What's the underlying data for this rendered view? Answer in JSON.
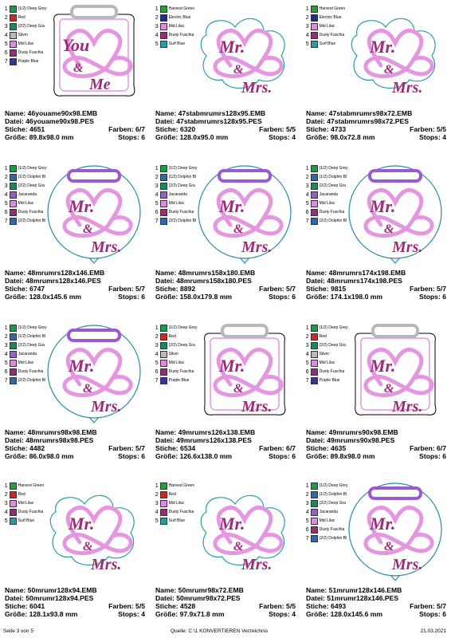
{
  "labels": {
    "name": "Name:",
    "datei": "Datei:",
    "stiche": "Stiche:",
    "groesse": "Größe:",
    "farben": "Farben:",
    "stops": "Stops:"
  },
  "designs": [
    {
      "name": "46youame90x98.EMB",
      "datei": "46youame90x98.PES",
      "stiche": "4651",
      "farben": "6/7",
      "groesse": "89.8x98.0 mm",
      "stops": "6",
      "shape": "you",
      "colors": [
        {
          "n": "1",
          "name": "(1/2) Deep Grey",
          "c": "#1a9c4a"
        },
        {
          "n": "2",
          "name": "Red",
          "c": "#e0201c"
        },
        {
          "n": "3",
          "name": "(2/2) Deep Gra",
          "c": "#1a8a5a"
        },
        {
          "n": "4",
          "name": "Silver",
          "c": "#b8b8b8"
        },
        {
          "n": "5",
          "name": "Mid Lilac",
          "c": "#e08ae0"
        },
        {
          "n": "6",
          "name": "Dusty Fuschia",
          "c": "#a0287c"
        },
        {
          "n": "7",
          "name": "Purple Blue",
          "c": "#3a30a0"
        }
      ]
    },
    {
      "name": "47stabmrumrs128x95.EMB",
      "datei": "47stabmrumrs128x95.PES",
      "stiche": "6320",
      "farben": "5/5",
      "groesse": "128.0x95.0 mm",
      "stops": "4",
      "shape": "mrs",
      "colors": [
        {
          "n": "1",
          "name": "Harvest Green",
          "c": "#2a9c3a"
        },
        {
          "n": "2",
          "name": "Electric Blue",
          "c": "#1a2a9c"
        },
        {
          "n": "3",
          "name": "Mid Lilac",
          "c": "#e08ae0"
        },
        {
          "n": "4",
          "name": "Dusty Fuschia",
          "c": "#a0287c"
        },
        {
          "n": "5",
          "name": "Surf Blue",
          "c": "#2a9ca8"
        }
      ]
    },
    {
      "name": "47stabmrumrs98x72.EMB",
      "datei": "47stabmrumrs98x72.PES",
      "stiche": "4733",
      "farben": "5/5",
      "groesse": "98.0x72.8 mm",
      "stops": "4",
      "shape": "mrs",
      "colors": [
        {
          "n": "1",
          "name": "Harvest Green",
          "c": "#2a9c3a"
        },
        {
          "n": "2",
          "name": "Electric Blue",
          "c": "#1a2a9c"
        },
        {
          "n": "3",
          "name": "Mid Lilac",
          "c": "#e08ae0"
        },
        {
          "n": "4",
          "name": "Dusty Fuschia",
          "c": "#a0287c"
        },
        {
          "n": "5",
          "name": "Surf Blue",
          "c": "#2a9ca8"
        }
      ]
    },
    {
      "name": "48mrumrs128x146.EMB",
      "datei": "48mrumrs128x146.PES",
      "stiche": "6747",
      "farben": "5/7",
      "groesse": "128.0x145.6 mm",
      "stops": "6",
      "shape": "balloon",
      "colors": [
        {
          "n": "1",
          "name": "(1/2) Deep Grey",
          "c": "#1a9c4a"
        },
        {
          "n": "2",
          "name": "(1/2) Dolphin Bl",
          "c": "#2a6ab0"
        },
        {
          "n": "3",
          "name": "(2/2) Deep Gra",
          "c": "#1a8a5a"
        },
        {
          "n": "4",
          "name": "Jacaranda",
          "c": "#9a5ad0"
        },
        {
          "n": "5",
          "name": "Mid Lilac",
          "c": "#e08ae0"
        },
        {
          "n": "6",
          "name": "Dusty Fuschia",
          "c": "#a0287c"
        },
        {
          "n": "7",
          "name": "(2/2) Dolphin Bl",
          "c": "#2a6ab0"
        }
      ]
    },
    {
      "name": "48mrumrs158x180.EMB",
      "datei": "48mrumrs158x180.PES",
      "stiche": "8892",
      "farben": "5/7",
      "groesse": "158.0x179.8 mm",
      "stops": "6",
      "shape": "balloon",
      "colors": [
        {
          "n": "1",
          "name": "(1/2) Deep Grey",
          "c": "#1a9c4a"
        },
        {
          "n": "2",
          "name": "(1/2) Dolphin Bl",
          "c": "#2a6ab0"
        },
        {
          "n": "3",
          "name": "(2/2) Deep Gra",
          "c": "#1a8a5a"
        },
        {
          "n": "4",
          "name": "Jacaranda",
          "c": "#9a5ad0"
        },
        {
          "n": "5",
          "name": "Mid Lilac",
          "c": "#e08ae0"
        },
        {
          "n": "6",
          "name": "Dusty Fuschia",
          "c": "#a0287c"
        },
        {
          "n": "7",
          "name": "(2/2) Dolphin Bl",
          "c": "#2a6ab0"
        }
      ]
    },
    {
      "name": "48mrumrs174x198.EMB",
      "datei": "48mrumrs174x198.PES",
      "stiche": "9815",
      "farben": "5/7",
      "groesse": "174.1x198.0 mm",
      "stops": "6",
      "shape": "balloon",
      "colors": [
        {
          "n": "1",
          "name": "(1/2) Deep Grey",
          "c": "#1a9c4a"
        },
        {
          "n": "2",
          "name": "(1/2) Dolphin Bl",
          "c": "#2a6ab0"
        },
        {
          "n": "3",
          "name": "(2/2) Deep Gra",
          "c": "#1a8a5a"
        },
        {
          "n": "4",
          "name": "Jacaranda",
          "c": "#9a5ad0"
        },
        {
          "n": "5",
          "name": "Mid Lilac",
          "c": "#e08ae0"
        },
        {
          "n": "6",
          "name": "Dusty Fuschia",
          "c": "#a0287c"
        },
        {
          "n": "7",
          "name": "(2/2) Dolphin Bl",
          "c": "#2a6ab0"
        }
      ]
    },
    {
      "name": "48mrumrs98x98.EMB",
      "datei": "48mrumrs98x98.PES",
      "stiche": "4482",
      "farben": "5/7",
      "groesse": "86.0x98.0 mm",
      "stops": "6",
      "shape": "balloon",
      "colors": [
        {
          "n": "1",
          "name": "(1/2) Deep Grey",
          "c": "#1a9c4a"
        },
        {
          "n": "2",
          "name": "(1/2) Dolphin Bl",
          "c": "#2a6ab0"
        },
        {
          "n": "3",
          "name": "(2/2) Deep Gra",
          "c": "#1a8a5a"
        },
        {
          "n": "4",
          "name": "Jacaranda",
          "c": "#9a5ad0"
        },
        {
          "n": "5",
          "name": "Mid Lilac",
          "c": "#e08ae0"
        },
        {
          "n": "6",
          "name": "Dusty Fuschia",
          "c": "#a0287c"
        },
        {
          "n": "7",
          "name": "(2/2) Dolphin Bl",
          "c": "#2a6ab0"
        }
      ]
    },
    {
      "name": "49mrumrs126x138.EMB",
      "datei": "49mrumrs126x138.PES",
      "stiche": "6534",
      "farben": "6/7",
      "groesse": "126.6x138.0 mm",
      "stops": "6",
      "shape": "frame",
      "colors": [
        {
          "n": "1",
          "name": "(1/2) Deep Grey",
          "c": "#1a9c4a"
        },
        {
          "n": "2",
          "name": "Red",
          "c": "#e0201c"
        },
        {
          "n": "3",
          "name": "(2/2) Deep Gra",
          "c": "#1a8a5a"
        },
        {
          "n": "4",
          "name": "Silver",
          "c": "#b8b8b8"
        },
        {
          "n": "5",
          "name": "Mid Lilac",
          "c": "#e08ae0"
        },
        {
          "n": "6",
          "name": "Dusty Fuschia",
          "c": "#a0287c"
        },
        {
          "n": "7",
          "name": "Purple Blue",
          "c": "#3a30a0"
        }
      ]
    },
    {
      "name": "49mrumrs90x98.EMB",
      "datei": "49mrumrs90x98.PES",
      "stiche": "4635",
      "farben": "6/7",
      "groesse": "89.8x98.0 mm",
      "stops": "6",
      "shape": "frame",
      "colors": [
        {
          "n": "1",
          "name": "(1/2) Deep Grey",
          "c": "#1a9c4a"
        },
        {
          "n": "2",
          "name": "Red",
          "c": "#e0201c"
        },
        {
          "n": "3",
          "name": "(2/2) Deep Gra",
          "c": "#1a8a5a"
        },
        {
          "n": "4",
          "name": "Silver",
          "c": "#b8b8b8"
        },
        {
          "n": "5",
          "name": "Mid Lilac",
          "c": "#e08ae0"
        },
        {
          "n": "6",
          "name": "Dusty Fuschia",
          "c": "#a0287c"
        },
        {
          "n": "7",
          "name": "Purple Blue",
          "c": "#3a30a0"
        }
      ]
    },
    {
      "name": "50mrumr128x94.EMB",
      "datei": "50mrumr128x94.PES",
      "stiche": "6041",
      "farben": "5/5",
      "groesse": "128.1x93.8 mm",
      "stops": "4",
      "shape": "mrs",
      "colors": [
        {
          "n": "1",
          "name": "Harvest Green",
          "c": "#2a9c3a"
        },
        {
          "n": "2",
          "name": "Red",
          "c": "#e0201c"
        },
        {
          "n": "3",
          "name": "Mid Lilac",
          "c": "#e08ae0"
        },
        {
          "n": "4",
          "name": "Dusty Fuschia",
          "c": "#a0287c"
        },
        {
          "n": "5",
          "name": "Surf Blue",
          "c": "#2a9ca8"
        }
      ]
    },
    {
      "name": "50mrumr98x72.EMB",
      "datei": "50mrumr98x72.PES",
      "stiche": "4528",
      "farben": "5/5",
      "groesse": "97.9x71.8 mm",
      "stops": "4",
      "shape": "mrs",
      "colors": [
        {
          "n": "1",
          "name": "Harvest Green",
          "c": "#2a9c3a"
        },
        {
          "n": "2",
          "name": "Red",
          "c": "#e0201c"
        },
        {
          "n": "3",
          "name": "Mid Lilac",
          "c": "#e08ae0"
        },
        {
          "n": "4",
          "name": "Dusty Fuschia",
          "c": "#a0287c"
        },
        {
          "n": "5",
          "name": "Surf Blue",
          "c": "#2a9ca8"
        }
      ]
    },
    {
      "name": "51mrumr128x146.EMB",
      "datei": "51mrumr128x146.PES",
      "stiche": "6493",
      "farben": "5/7",
      "groesse": "128.0x145.6 mm",
      "stops": "6",
      "shape": "balloon",
      "colors": [
        {
          "n": "1",
          "name": "(1/2) Deep Grey",
          "c": "#1a9c4a"
        },
        {
          "n": "2",
          "name": "(1/2) Dolphin Bl",
          "c": "#2a6ab0"
        },
        {
          "n": "3",
          "name": "(2/2) Deep Gra",
          "c": "#1a8a5a"
        },
        {
          "n": "4",
          "name": "Jacaranda",
          "c": "#9a5ad0"
        },
        {
          "n": "5",
          "name": "Mid Lilac",
          "c": "#e08ae0"
        },
        {
          "n": "6",
          "name": "Dusty Fuschia",
          "c": "#a0287c"
        },
        {
          "n": "7",
          "name": "(2/2) Dolphin Bl",
          "c": "#2a6ab0"
        }
      ]
    }
  ],
  "footer": {
    "page": "Seite 3 von 5",
    "source": "Quelle: C:\\1 KONVERTIEREN Verzeichnis",
    "date": "21.03.2021"
  }
}
